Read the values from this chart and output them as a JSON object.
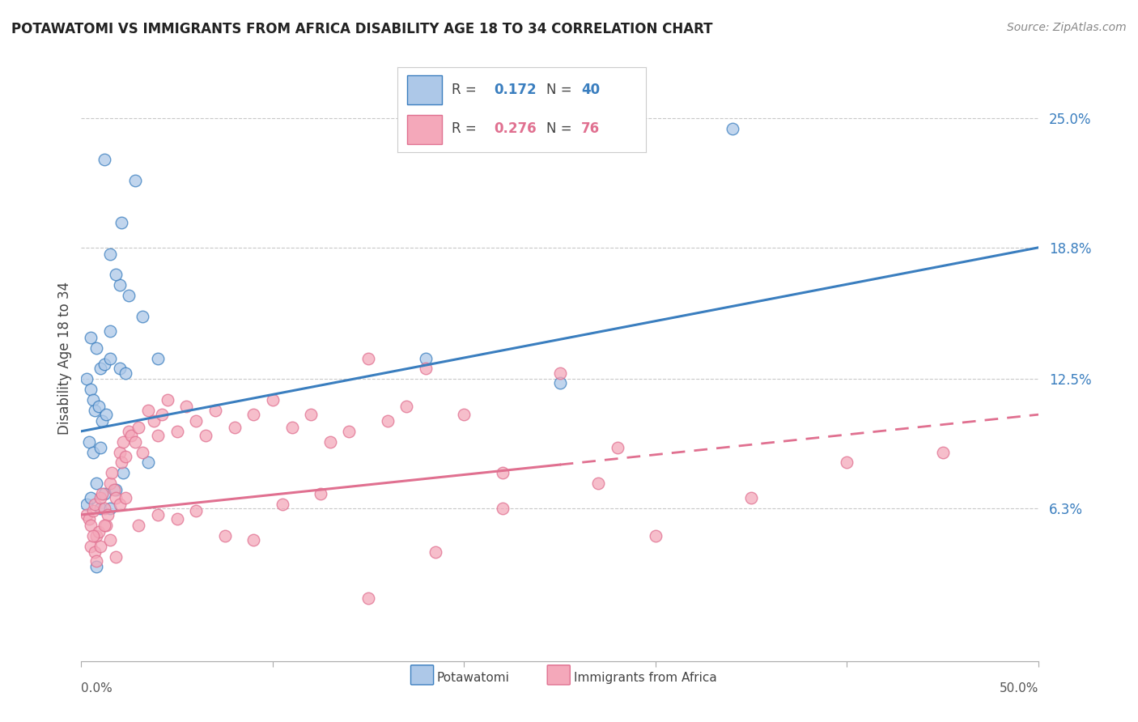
{
  "title": "POTAWATOMI VS IMMIGRANTS FROM AFRICA DISABILITY AGE 18 TO 34 CORRELATION CHART",
  "source": "Source: ZipAtlas.com",
  "ylabel": "Disability Age 18 to 34",
  "y_tick_labels": [
    "6.3%",
    "12.5%",
    "18.8%",
    "25.0%"
  ],
  "y_tick_values": [
    6.3,
    12.5,
    18.8,
    25.0
  ],
  "xlim": [
    0.0,
    50.0
  ],
  "ylim": [
    -1.0,
    28.0
  ],
  "legend_blue_r": "0.172",
  "legend_blue_n": "40",
  "legend_pink_r": "0.276",
  "legend_pink_n": "76",
  "legend_label_blue": "Potawatomi",
  "legend_label_pink": "Immigrants from Africa",
  "blue_scatter_color": "#adc8e8",
  "blue_line_color": "#3a7ebf",
  "pink_scatter_color": "#f4a8ba",
  "pink_line_color": "#e07090",
  "blue_scatter_x": [
    1.2,
    2.1,
    2.8,
    1.5,
    2.0,
    2.5,
    3.2,
    1.8,
    0.5,
    0.8,
    1.0,
    1.2,
    1.5,
    0.3,
    0.5,
    0.6,
    0.7,
    0.9,
    1.1,
    1.3,
    0.4,
    0.6,
    1.0,
    1.5,
    2.0,
    2.3,
    3.5,
    4.0,
    0.8,
    1.2,
    1.8,
    2.2,
    0.3,
    0.5,
    1.0,
    0.8,
    1.5,
    34.0,
    25.0,
    18.0
  ],
  "blue_scatter_y": [
    23.0,
    20.0,
    22.0,
    18.5,
    17.0,
    16.5,
    15.5,
    17.5,
    14.5,
    14.0,
    13.0,
    13.2,
    14.8,
    12.5,
    12.0,
    11.5,
    11.0,
    11.2,
    10.5,
    10.8,
    9.5,
    9.0,
    9.2,
    13.5,
    13.0,
    12.8,
    8.5,
    13.5,
    7.5,
    7.0,
    7.2,
    8.0,
    6.5,
    6.8,
    6.3,
    3.5,
    6.3,
    24.5,
    12.3,
    13.5
  ],
  "pink_scatter_x": [
    0.3,
    0.4,
    0.5,
    0.6,
    0.7,
    0.8,
    0.9,
    1.0,
    1.1,
    1.2,
    1.3,
    1.4,
    1.5,
    1.6,
    1.7,
    1.8,
    2.0,
    2.1,
    2.2,
    2.3,
    2.5,
    2.6,
    2.8,
    3.0,
    3.2,
    3.5,
    3.8,
    4.0,
    4.2,
    4.5,
    5.0,
    5.5,
    6.0,
    6.5,
    7.0,
    8.0,
    9.0,
    10.0,
    11.0,
    12.0,
    13.0,
    14.0,
    15.0,
    16.0,
    17.0,
    18.0,
    20.0,
    22.0,
    25.0,
    28.0,
    0.5,
    0.6,
    0.7,
    0.8,
    1.0,
    1.2,
    1.5,
    1.8,
    2.0,
    2.3,
    3.0,
    4.0,
    5.0,
    6.0,
    7.5,
    9.0,
    10.5,
    12.5,
    15.0,
    18.5,
    22.0,
    27.0,
    30.0,
    35.0,
    40.0,
    45.0
  ],
  "pink_scatter_y": [
    6.0,
    5.8,
    5.5,
    6.2,
    6.5,
    5.0,
    5.2,
    6.8,
    7.0,
    6.3,
    5.5,
    6.0,
    7.5,
    8.0,
    7.2,
    6.8,
    9.0,
    8.5,
    9.5,
    8.8,
    10.0,
    9.8,
    9.5,
    10.2,
    9.0,
    11.0,
    10.5,
    9.8,
    10.8,
    11.5,
    10.0,
    11.2,
    10.5,
    9.8,
    11.0,
    10.2,
    10.8,
    11.5,
    10.2,
    10.8,
    9.5,
    10.0,
    13.5,
    10.5,
    11.2,
    13.0,
    10.8,
    6.3,
    12.8,
    9.2,
    4.5,
    5.0,
    4.2,
    3.8,
    4.5,
    5.5,
    4.8,
    4.0,
    6.5,
    6.8,
    5.5,
    6.0,
    5.8,
    6.2,
    5.0,
    4.8,
    6.5,
    7.0,
    2.0,
    4.2,
    8.0,
    7.5,
    5.0,
    6.8,
    8.5,
    9.0
  ],
  "blue_line_x0": 0.0,
  "blue_line_x1": 50.0,
  "blue_line_y0": 10.0,
  "blue_line_y1": 18.8,
  "pink_solid_x0": 0.0,
  "pink_solid_x1": 25.0,
  "pink_solid_y0": 6.0,
  "pink_dash_x0": 25.0,
  "pink_dash_x1": 50.0,
  "pink_line_y1": 10.8,
  "background_color": "#ffffff",
  "grid_color": "#c8c8c8"
}
